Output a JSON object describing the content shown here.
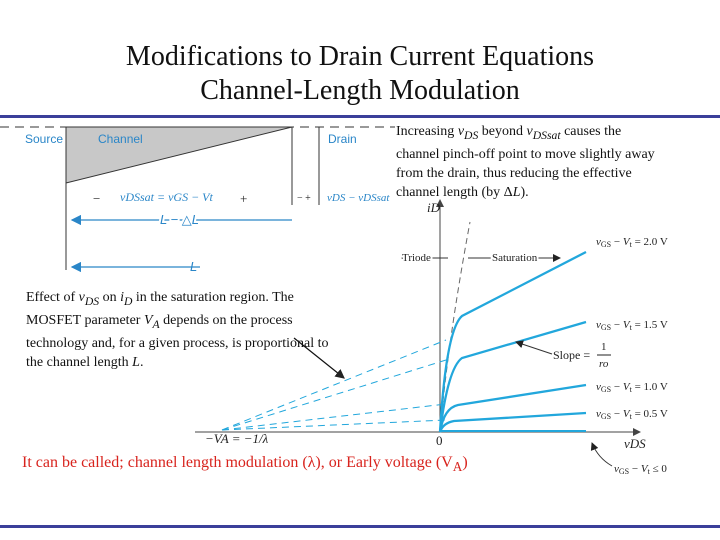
{
  "slide": {
    "title_line1": "Modifications to Drain Current Equations",
    "title_line2": "Channel-Length Modulation",
    "footer_text": "It can be called; channel length modulation (λ), or Early voltage (V",
    "footer_sub": "A",
    "footer_end": ")"
  },
  "notes": {
    "top_right": {
      "p1": "Increasing ",
      "v1": "v",
      "s1": "DS",
      "p2": " beyond ",
      "v2": "v",
      "s2": "DSsat",
      "p3": " causes the channel pinch-off point to move slightly away from the drain, thus reducing the effective channel length (by Δ",
      "v3": "L",
      "p4": ")."
    },
    "left": {
      "p1": "Effect of ",
      "v1": "v",
      "s1": "DS",
      "p2": " on ",
      "v2": "i",
      "s2": "D",
      "p3": " in the saturation region. The MOSFET parameter ",
      "v3": "V",
      "s3": "A",
      "p4": " depends on the process technology and, for a given process, is proportional to the channel length ",
      "v4": "L",
      "p5": "."
    }
  },
  "channel_figure": {
    "source_label": "Source",
    "channel_label": "Channel",
    "drain_label": "Drain",
    "minus_1": "−",
    "plus_1": "+",
    "vdssat_eq": "vDSsat = vGS − Vt",
    "small_pm": "− +",
    "vds_minus": "vDS − vDSsat",
    "l_minus_dl": "L − △L",
    "l_label": "L"
  },
  "graph": {
    "y_axis_label": "iD",
    "x_axis_label": "vDS",
    "origin_label": "0",
    "intercept_label": "−VA = −1/λ",
    "triode_label": "Triode",
    "saturation_label": "Saturation",
    "slope_label": "Slope = ",
    "slope_num": "1",
    "slope_den": "ro",
    "colors": {
      "curve": "#22a7dc",
      "ext": "#22a7dc",
      "axis": "#444444"
    }
  },
  "chart_data": {
    "type": "line",
    "title": "",
    "xlabel": "vDS",
    "ylabel": "iD",
    "series": [
      {
        "name": "vGS − Vt = 2.0 V",
        "intercept_vds": -1,
        "saturation_points": [
          [
            0.2,
            0.63
          ],
          [
            1.0,
            1.0
          ]
        ]
      },
      {
        "name": "vGS − Vt = 1.5 V",
        "intercept_vds": -1,
        "saturation_points": [
          [
            0.2,
            0.39
          ],
          [
            1.0,
            0.5
          ]
        ]
      },
      {
        "name": "vGS − Vt = 1.0 V",
        "intercept_vds": -1,
        "saturation_points": [
          [
            0.2,
            0.17
          ],
          [
            1.0,
            0.22
          ]
        ]
      },
      {
        "name": "vGS − Vt = 0.5 V",
        "intercept_vds": -1,
        "saturation_points": [
          [
            0.2,
            0.05
          ],
          [
            1.0,
            0.08
          ]
        ]
      },
      {
        "name": "vGS − Vt ≤ 0",
        "intercept_vds": null,
        "saturation_points": [
          [
            0.2,
            0
          ],
          [
            1.0,
            0
          ]
        ]
      }
    ]
  }
}
